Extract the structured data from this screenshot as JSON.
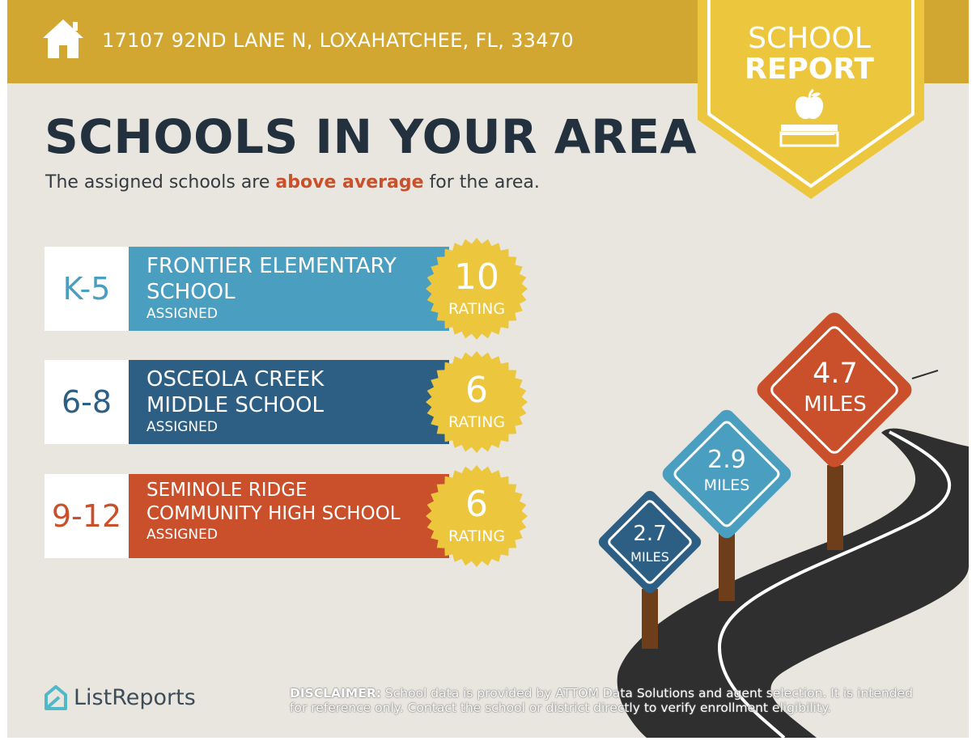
{
  "header": {
    "address": "17107 92ND LANE N, LOXAHATCHEE, FL, 33470"
  },
  "badge": {
    "line1": "SCHOOL",
    "line2": "REPORT",
    "icon": "apple-on-book-icon"
  },
  "title": "SCHOOLS IN YOUR AREA",
  "subtitle": {
    "before": "The assigned schools are ",
    "highlight": "above average",
    "after": " for the area."
  },
  "schools": [
    {
      "grades": "K-5",
      "name_line1": "FRONTIER ELEMENTARY",
      "name_line2": "SCHOOL",
      "status": "ASSIGNED",
      "rating": "10",
      "rating_label": "RATING"
    },
    {
      "grades": "6-8",
      "name_line1": "OSCEOLA CREEK",
      "name_line2": "MIDDLE SCHOOL",
      "status": "ASSIGNED",
      "rating": "6",
      "rating_label": "RATING"
    },
    {
      "grades": "9-12",
      "name_line1": "SEMINOLE RIDGE",
      "name_line2": "COMMUNITY HIGH SCHOOL",
      "status": "ASSIGNED",
      "rating": "6",
      "rating_label": "RATING"
    }
  ],
  "distances": [
    {
      "value": "2.7",
      "unit": "MILES"
    },
    {
      "value": "2.9",
      "unit": "MILES"
    },
    {
      "value": "4.7",
      "unit": "MILES"
    }
  ],
  "footer": {
    "logo": "ListReports",
    "disclaimer_label": "DISCLAIMER:",
    "disclaimer_text": " School data is provided by ATTOM Data Solutions and agent selection. It is intended for reference only. Contact the school or district directly to verify enrollment eligibility."
  },
  "colors": {
    "header": "#d2a731",
    "badge": "#ecc63d",
    "title": "#23313f",
    "highlight": "#c9502b",
    "elementary": "#4a9ebf",
    "middle": "#2d5f85",
    "high": "#c9502b",
    "seal": "#ecc63d"
  }
}
